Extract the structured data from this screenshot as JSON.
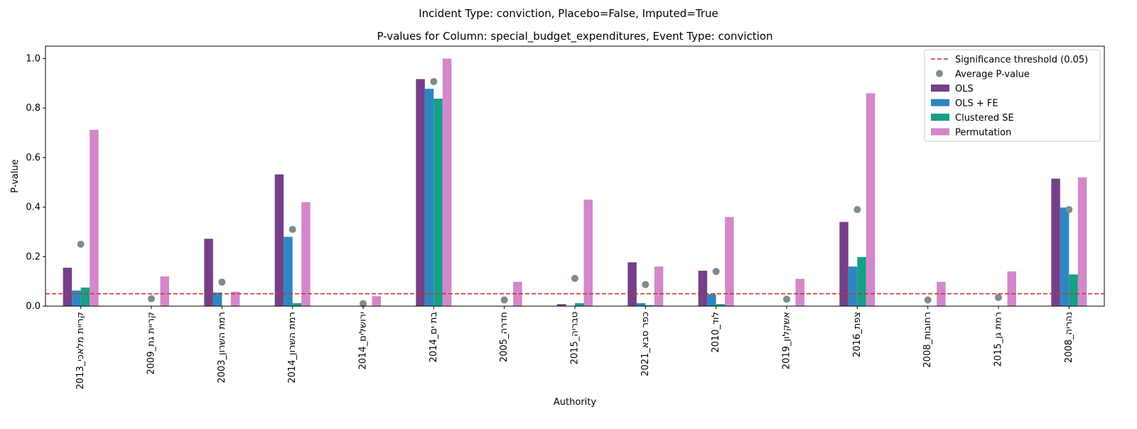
{
  "figure": {
    "suptitle": "Incident Type: conviction, Placebo=False, Imputed=True"
  },
  "chart_data": {
    "type": "bar",
    "title": "P-values for Column: special_budget_expenditures, Event Type: conviction",
    "xlabel": "Authority",
    "ylabel": "P-value",
    "ylim": [
      0,
      1.05
    ],
    "yticks": [
      "0.0",
      "0.2",
      "0.4",
      "0.6",
      "0.8",
      "1.0"
    ],
    "grid": false,
    "legend_position": "top-right",
    "categories": [
      "קריית מלאכי_2013",
      "קריית גת_2009",
      "רמת השרון_2003",
      "רמת השרון_2014",
      "ירושלים_2014",
      "בת ים_2014",
      "חדרה_2005",
      "טבריה_2015",
      "כפר סבא_2021",
      "לוד_2010",
      "אשקלון_2019",
      "צפת_2016",
      "רחובות_2008",
      "רמת גן_2015",
      "נהריה_2008"
    ],
    "series": [
      {
        "name": "OLS",
        "color": "#763f88",
        "values": [
          0.155,
          0.0,
          0.272,
          0.532,
          0.0,
          0.917,
          0.0,
          0.008,
          0.177,
          0.143,
          0.0,
          0.34,
          0.0,
          0.0,
          0.515
        ]
      },
      {
        "name": "OLS + FE",
        "color": "#2e86c1",
        "values": [
          0.063,
          0.0,
          0.055,
          0.28,
          0.0,
          0.878,
          0.0,
          0.0,
          0.012,
          0.048,
          0.0,
          0.16,
          0.0,
          0.0,
          0.398
        ]
      },
      {
        "name": "Clustered SE",
        "color": "#17a085",
        "values": [
          0.075,
          0.0,
          0.0,
          0.012,
          0.0,
          0.838,
          0.0,
          0.012,
          0.004,
          0.008,
          0.0,
          0.198,
          0.0,
          0.0,
          0.128
        ]
      },
      {
        "name": "Permutation",
        "color": "#d288ca",
        "values": [
          0.712,
          0.12,
          0.058,
          0.42,
          0.04,
          1.0,
          0.098,
          0.43,
          0.16,
          0.36,
          0.11,
          0.86,
          0.098,
          0.14,
          0.52
        ]
      }
    ],
    "average": {
      "name": "Average P-value",
      "color": "#7f8c8d",
      "values": [
        0.25,
        0.03,
        0.097,
        0.31,
        0.01,
        0.907,
        0.025,
        0.112,
        0.087,
        0.14,
        0.028,
        0.39,
        0.025,
        0.035,
        0.39
      ]
    },
    "threshold": {
      "name": "Significance threshold (0.05)",
      "color": "#c0392b",
      "value": 0.05
    }
  }
}
